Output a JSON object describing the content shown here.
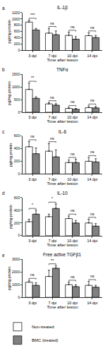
{
  "chart_data": [
    {
      "type": "bar",
      "panel_label": "a",
      "title": "IL-1β",
      "x_label": "Time after lesion",
      "y_label": "pg/mg protein",
      "categories": [
        "3 dpi",
        "7 dpi",
        "10 dpi",
        "14 dpi"
      ],
      "series": [
        {
          "name": "Non-treated",
          "color": "#ffffff",
          "values": [
            900,
            550,
            480,
            470
          ],
          "errors": [
            60,
            150,
            100,
            90
          ]
        },
        {
          "name": "BMC (treated)",
          "color": "#808080",
          "values": [
            650,
            500,
            360,
            410
          ],
          "errors": [
            50,
            120,
            80,
            70
          ]
        }
      ],
      "ylim": [
        0,
        1200
      ],
      "yticks": [
        0,
        200,
        400,
        600,
        800,
        1000,
        1200
      ],
      "annotations": [
        {
          "category": "3 dpi",
          "text": "***"
        },
        {
          "category": "7 dpi",
          "text": "ns"
        },
        {
          "category": "10 dpi",
          "text": "ns"
        },
        {
          "category": "14 dpi",
          "text": "ns"
        }
      ]
    },
    {
      "type": "bar",
      "panel_label": "b",
      "title": "TNFα",
      "x_label": "Time after lesion",
      "y_label": "pg/mg protein",
      "categories": [
        "3 dpi",
        "7 dpi",
        "10 dpi",
        "14 dpi"
      ],
      "series": [
        {
          "name": "Non-treated",
          "color": "#ffffff",
          "values": [
            900,
            330,
            150,
            180
          ],
          "errors": [
            250,
            50,
            40,
            70
          ]
        },
        {
          "name": "BMC (treated)",
          "color": "#808080",
          "values": [
            550,
            280,
            120,
            170
          ],
          "errors": [
            60,
            60,
            30,
            60
          ]
        }
      ],
      "ylim": [
        0,
        1500
      ],
      "yticks": [
        0,
        500,
        1000,
        1500
      ],
      "annotations": [
        {
          "category": "3 dpi",
          "text": "**"
        },
        {
          "category": "7 dpi",
          "text": "ns"
        },
        {
          "category": "10 dpi",
          "text": "ns"
        },
        {
          "category": "14 dpi",
          "text": "ns"
        }
      ]
    },
    {
      "type": "bar",
      "panel_label": "c",
      "title": "IL-6",
      "x_label": "Time after lesion",
      "y_label": "pg/mg protein",
      "categories": [
        "3 dpi",
        "7 dpi",
        "10 dpi",
        "14 dpi"
      ],
      "series": [
        {
          "name": "Non-treated",
          "color": "#ffffff",
          "values": [
            430,
            360,
            180,
            200
          ],
          "errors": [
            80,
            120,
            40,
            60
          ]
        },
        {
          "name": "BMC (treated)",
          "color": "#808080",
          "values": [
            320,
            270,
            180,
            190
          ],
          "errors": [
            90,
            110,
            50,
            50
          ]
        }
      ],
      "ylim": [
        0,
        600
      ],
      "yticks": [
        0,
        200,
        400,
        600
      ],
      "annotations": [
        {
          "category": "3 dpi",
          "text": "ns"
        },
        {
          "category": "7 dpi",
          "text": "ns"
        },
        {
          "category": "10 dpi",
          "text": "ns"
        },
        {
          "category": "14 dpi",
          "text": "ns"
        }
      ]
    },
    {
      "type": "bar",
      "panel_label": "d",
      "title": "IL-10",
      "x_label": "Time after lesion",
      "y_label": "pg/mg protein",
      "categories": [
        "3 dpi",
        "7 dpi",
        "10 dpi",
        "14 dpi"
      ],
      "series": [
        {
          "name": "Non-treated",
          "color": "#ffffff",
          "values": [
            220,
            300,
            270,
            200
          ],
          "errors": [
            40,
            40,
            40,
            60
          ]
        },
        {
          "name": "BMC (treated)",
          "color": "#808080",
          "values": [
            340,
            430,
            200,
            150
          ],
          "errors": [
            60,
            70,
            40,
            40
          ]
        }
      ],
      "ylim": [
        0,
        600
      ],
      "yticks": [
        0,
        200,
        400,
        600
      ],
      "annotations": [
        {
          "category": "3 dpi",
          "text": "*"
        },
        {
          "category": "7 dpi",
          "text": "*"
        },
        {
          "category": "10 dpi",
          "text": "ns"
        },
        {
          "category": "14 dpi",
          "text": "ns"
        }
      ]
    },
    {
      "type": "bar",
      "panel_label": "e",
      "title": "Free active TGFβ1",
      "x_label": "Time after lesion",
      "y_label": "pg/mg protein",
      "categories": [
        "3 dpi",
        "7 dpi",
        "10 dpi",
        "14 dpi"
      ],
      "series": [
        {
          "name": "Non-treated",
          "color": "#ffffff",
          "values": [
            1200,
            1650,
            1000,
            950
          ],
          "errors": [
            150,
            500,
            200,
            300
          ]
        },
        {
          "name": "BMC (treated)",
          "color": "#808080",
          "values": [
            950,
            2300,
            850,
            800
          ],
          "errors": [
            200,
            200,
            150,
            150
          ]
        }
      ],
      "ylim": [
        0,
        3000
      ],
      "yticks": [
        0,
        1000,
        2000,
        3000
      ],
      "annotations": [
        {
          "category": "3 dpi",
          "text": "ns"
        },
        {
          "category": "7 dpi",
          "text": "**"
        },
        {
          "category": "10 dpi",
          "text": "ns"
        },
        {
          "category": "14 dpi",
          "text": "ns"
        }
      ],
      "legend": "bottom"
    }
  ]
}
